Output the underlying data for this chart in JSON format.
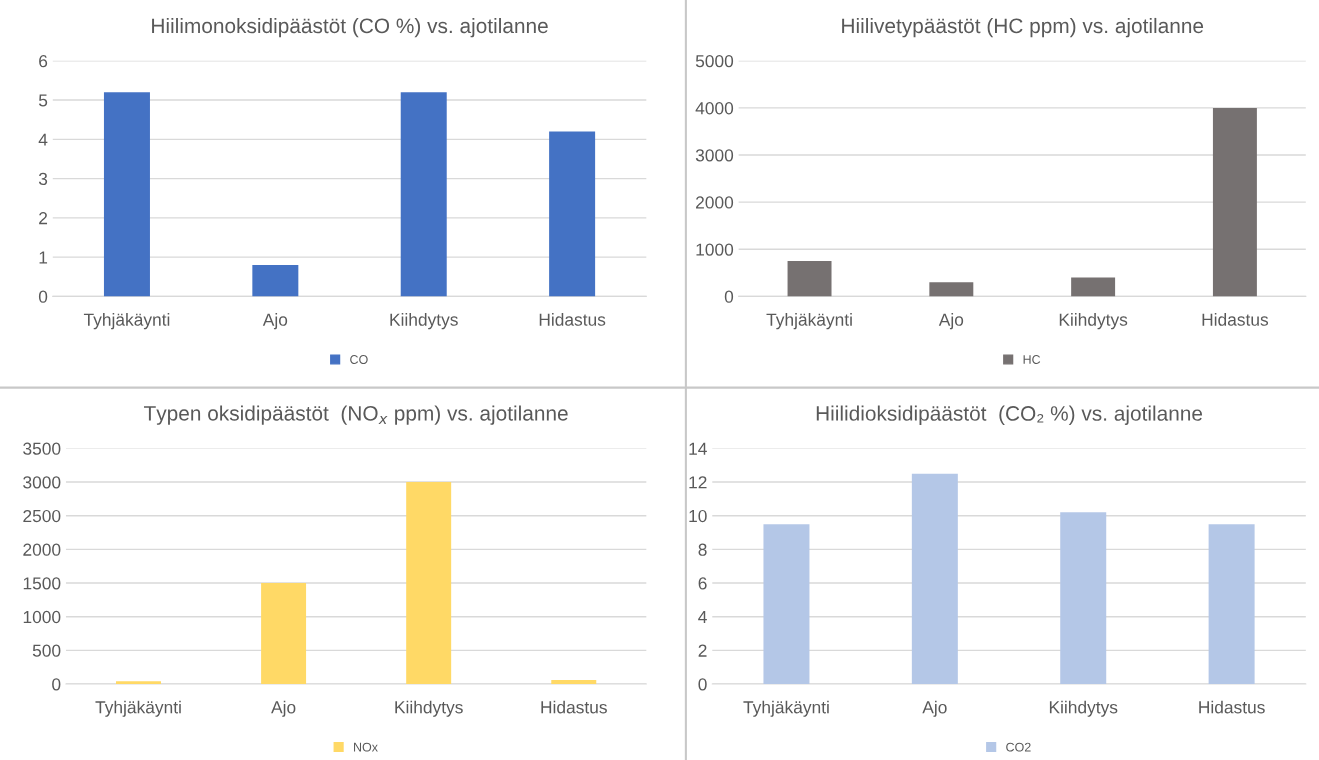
{
  "chart_data": [
    {
      "type": "bar",
      "title": "Hiilimonoksidipäästöt (CO %) vs. ajotilanne",
      "categories": [
        "Tyhjäkäynti",
        "Ajo",
        "Kiihdytys",
        "Hidastus"
      ],
      "series": [
        {
          "name": "CO",
          "color": "#4472c4",
          "values": [
            5.2,
            0.8,
            5.2,
            4.2
          ]
        }
      ],
      "ylim": [
        0,
        6
      ],
      "yticks": [
        0,
        1,
        2,
        3,
        4,
        5,
        6
      ],
      "grid": "y",
      "legend": "bottom"
    },
    {
      "type": "bar",
      "title": "Hiilivetypäästöt (HC ppm) vs. ajotilanne",
      "categories": [
        "Tyhjäkäynti",
        "Ajo",
        "Kiihdytys",
        "Hidastus"
      ],
      "series": [
        {
          "name": "HC",
          "color": "#767171",
          "values": [
            750,
            300,
            400,
            4000
          ]
        }
      ],
      "ylim": [
        0,
        5000
      ],
      "yticks": [
        0,
        1000,
        2000,
        3000,
        4000,
        5000
      ],
      "grid": "y",
      "legend": "bottom"
    },
    {
      "type": "bar",
      "title": "Typen oksidipäästöt  (NO$_{x}$ ppm) vs. ajotilanne",
      "categories": [
        "Tyhjäkäynti",
        "Ajo",
        "Kiihdytys",
        "Hidastus"
      ],
      "series": [
        {
          "name": "NOx",
          "color": "#ffd966",
          "values": [
            40,
            1500,
            3000,
            60
          ]
        }
      ],
      "ylim": [
        0,
        3500
      ],
      "yticks": [
        0,
        500,
        1000,
        1500,
        2000,
        2500,
        3000,
        3500
      ],
      "grid": "y",
      "legend": "bottom"
    },
    {
      "type": "bar",
      "title": "Hiilidioksidipäästöt  (CO₂ %) vs. ajotilanne",
      "categories": [
        "Tyhjäkäynti",
        "Ajo",
        "Kiihdytys",
        "Hidastus"
      ],
      "series": [
        {
          "name": "CO2",
          "color": "#b4c7e7",
          "values": [
            9.5,
            12.5,
            10.2,
            9.5
          ]
        }
      ],
      "ylim": [
        0,
        14
      ],
      "yticks": [
        0,
        2,
        4,
        6,
        8,
        10,
        12,
        14
      ],
      "grid": "y",
      "legend": "bottom"
    }
  ]
}
